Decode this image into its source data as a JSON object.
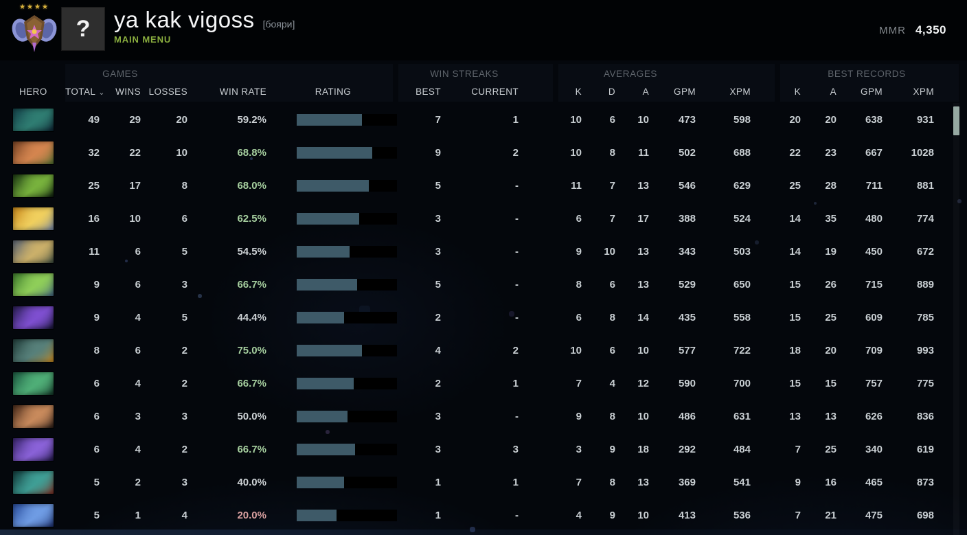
{
  "header": {
    "player_name": "ya kak vigoss",
    "player_tag": "[бояри]",
    "nav_label": "MAIN MENU",
    "avatar_glyph": "?",
    "mmr_label": "MMR",
    "mmr_value": "4,350",
    "medal_stars": "★★★★"
  },
  "table": {
    "groups": {
      "games": "GAMES",
      "win_streaks": "WIN STREAKS",
      "averages": "AVERAGES",
      "best_records": "BEST RECORDS"
    },
    "columns": {
      "hero": "HERO",
      "total": "TOTAL",
      "wins": "WINS",
      "losses": "LOSSES",
      "win_rate": "WIN RATE",
      "rating": "RATING",
      "best": "BEST",
      "current": "CURRENT",
      "k": "K",
      "d": "D",
      "a": "A",
      "gpm": "GPM",
      "xpm": "XPM",
      "rk": "K",
      "ra": "A",
      "rgpm": "GPM",
      "rxpm": "XPM"
    },
    "sort_indicator": "⌄",
    "bar_color": "#3e5a68",
    "rows": [
      {
        "hero": "winter-wyvern",
        "icon": [
          "#14424a",
          "#2f7d72",
          "#0b1f2e"
        ],
        "total": "49",
        "wins": "29",
        "losses": "20",
        "win_rate": "59.2%",
        "tone": "neutral",
        "rating_fill": 65,
        "best": "7",
        "current": "1",
        "k": "10",
        "d": "6",
        "a": "10",
        "gpm": "473",
        "xpm": "598",
        "rk": "20",
        "ra": "20",
        "rgpm": "638",
        "rxpm": "931"
      },
      {
        "hero": "windranger",
        "icon": [
          "#7c4526",
          "#d4854f",
          "#4f6c2e"
        ],
        "total": "32",
        "wins": "22",
        "losses": "10",
        "win_rate": "68.8%",
        "tone": "good",
        "rating_fill": 75,
        "best": "9",
        "current": "2",
        "k": "10",
        "d": "8",
        "a": "11",
        "gpm": "502",
        "xpm": "688",
        "rk": "22",
        "ra": "23",
        "rgpm": "667",
        "rxpm": "1028"
      },
      {
        "hero": "viper",
        "icon": [
          "#1d3a14",
          "#78b23d",
          "#0c1c0c"
        ],
        "total": "25",
        "wins": "17",
        "losses": "8",
        "win_rate": "68.0%",
        "tone": "good",
        "rating_fill": 72,
        "best": "5",
        "current": "-",
        "k": "11",
        "d": "7",
        "a": "13",
        "gpm": "546",
        "xpm": "629",
        "rk": "25",
        "ra": "28",
        "rgpm": "711",
        "rxpm": "881"
      },
      {
        "hero": "zeus",
        "icon": [
          "#c98a1e",
          "#f0cf5e",
          "#6d7fa0"
        ],
        "total": "16",
        "wins": "10",
        "losses": "6",
        "win_rate": "62.5%",
        "tone": "good",
        "rating_fill": 62,
        "best": "3",
        "current": "-",
        "k": "6",
        "d": "7",
        "a": "17",
        "gpm": "388",
        "xpm": "524",
        "rk": "14",
        "ra": "35",
        "rgpm": "480",
        "rxpm": "774"
      },
      {
        "hero": "skywrath-mage",
        "icon": [
          "#5a6474",
          "#cbb06a",
          "#3b4a3e"
        ],
        "total": "11",
        "wins": "6",
        "losses": "5",
        "win_rate": "54.5%",
        "tone": "neutral",
        "rating_fill": 53,
        "best": "3",
        "current": "-",
        "k": "9",
        "d": "10",
        "a": "13",
        "gpm": "343",
        "xpm": "503",
        "rk": "14",
        "ra": "19",
        "rgpm": "450",
        "rxpm": "672"
      },
      {
        "hero": "necrophos",
        "icon": [
          "#3f7d2e",
          "#8fce59",
          "#41627f"
        ],
        "total": "9",
        "wins": "6",
        "losses": "3",
        "win_rate": "66.7%",
        "tone": "good",
        "rating_fill": 60,
        "best": "5",
        "current": "-",
        "k": "8",
        "d": "6",
        "a": "13",
        "gpm": "529",
        "xpm": "650",
        "rk": "15",
        "ra": "26",
        "rgpm": "715",
        "rxpm": "889"
      },
      {
        "hero": "enigma",
        "icon": [
          "#2a1f55",
          "#7e4fd0",
          "#131230"
        ],
        "total": "9",
        "wins": "4",
        "losses": "5",
        "win_rate": "44.4%",
        "tone": "neutral",
        "rating_fill": 47,
        "best": "2",
        "current": "-",
        "k": "6",
        "d": "8",
        "a": "14",
        "gpm": "435",
        "xpm": "558",
        "rk": "15",
        "ra": "25",
        "rgpm": "609",
        "rxpm": "785"
      },
      {
        "hero": "slark",
        "icon": [
          "#23403d",
          "#57807a",
          "#c7881f"
        ],
        "total": "8",
        "wins": "6",
        "losses": "2",
        "win_rate": "75.0%",
        "tone": "good",
        "rating_fill": 65,
        "best": "4",
        "current": "2",
        "k": "10",
        "d": "6",
        "a": "10",
        "gpm": "577",
        "xpm": "722",
        "rk": "18",
        "ra": "20",
        "rgpm": "709",
        "rxpm": "993"
      },
      {
        "hero": "wraith-king",
        "icon": [
          "#1d5c43",
          "#4fae77",
          "#123326"
        ],
        "total": "6",
        "wins": "4",
        "losses": "2",
        "win_rate": "66.7%",
        "tone": "good",
        "rating_fill": 57,
        "best": "2",
        "current": "1",
        "k": "7",
        "d": "4",
        "a": "12",
        "gpm": "590",
        "xpm": "700",
        "rk": "15",
        "ra": "15",
        "rgpm": "757",
        "rxpm": "775"
      },
      {
        "hero": "marci",
        "icon": [
          "#4a2c1c",
          "#c88a5c",
          "#2b1c16"
        ],
        "total": "6",
        "wins": "3",
        "losses": "3",
        "win_rate": "50.0%",
        "tone": "neutral",
        "rating_fill": 51,
        "best": "3",
        "current": "-",
        "k": "9",
        "d": "8",
        "a": "10",
        "gpm": "486",
        "xpm": "631",
        "rk": "13",
        "ra": "13",
        "rgpm": "626",
        "rxpm": "836"
      },
      {
        "hero": "bane",
        "icon": [
          "#3b2670",
          "#8a62d8",
          "#1c1440"
        ],
        "total": "6",
        "wins": "4",
        "losses": "2",
        "win_rate": "66.7%",
        "tone": "good",
        "rating_fill": 58,
        "best": "3",
        "current": "3",
        "k": "3",
        "d": "9",
        "a": "18",
        "gpm": "292",
        "xpm": "484",
        "rk": "7",
        "ra": "25",
        "rgpm": "340",
        "rxpm": "619"
      },
      {
        "hero": "weaver",
        "icon": [
          "#123c3c",
          "#3f9e95",
          "#7c2e24"
        ],
        "total": "5",
        "wins": "2",
        "losses": "3",
        "win_rate": "40.0%",
        "tone": "neutral",
        "rating_fill": 47,
        "best": "1",
        "current": "1",
        "k": "7",
        "d": "8",
        "a": "13",
        "gpm": "369",
        "xpm": "541",
        "rk": "9",
        "ra": "16",
        "rgpm": "465",
        "rxpm": "873"
      },
      {
        "hero": "puck",
        "icon": [
          "#2b4f9e",
          "#6f9ce4",
          "#1c2f6b"
        ],
        "total": "5",
        "wins": "1",
        "losses": "4",
        "win_rate": "20.0%",
        "tone": "bad",
        "rating_fill": 40,
        "best": "1",
        "current": "-",
        "k": "4",
        "d": "9",
        "a": "10",
        "gpm": "413",
        "xpm": "536",
        "rk": "7",
        "ra": "21",
        "rgpm": "475",
        "rxpm": "698"
      }
    ]
  }
}
